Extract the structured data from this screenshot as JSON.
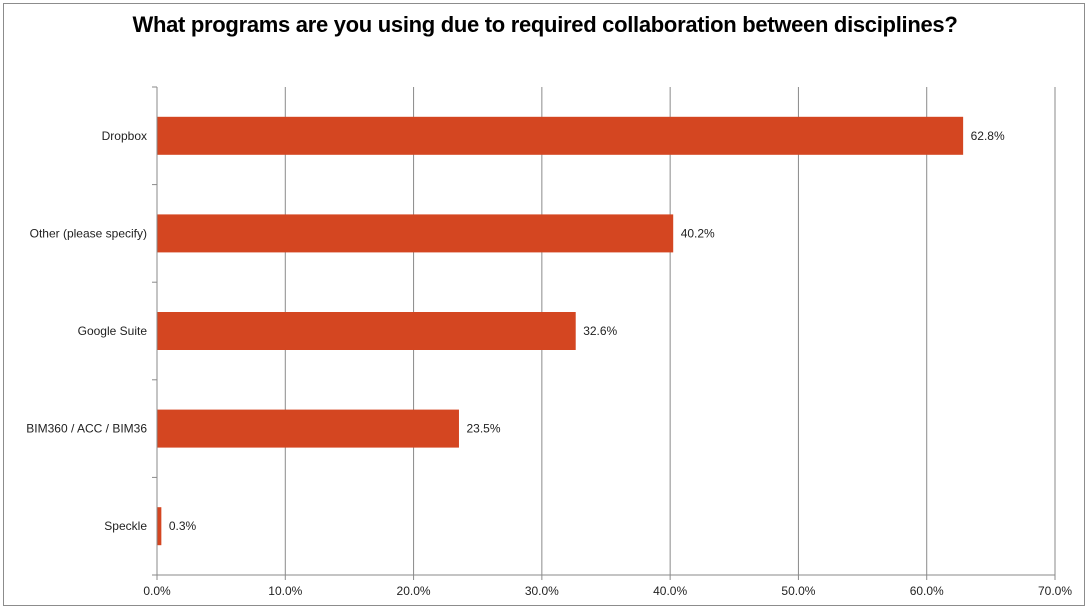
{
  "chart_data": {
    "type": "bar",
    "orientation": "horizontal",
    "title": "What programs are you using due to required collaboration between disciplines?",
    "categories": [
      "Dropbox",
      "Other (please specify)",
      "Google Suite",
      "BIM360 / ACC / BIM36",
      "Speckle"
    ],
    "values": [
      62.8,
      40.2,
      32.6,
      23.5,
      0.3
    ],
    "value_labels": [
      "62.8%",
      "40.2%",
      "32.6%",
      "23.5%",
      "0.3%"
    ],
    "xlim": [
      0,
      70
    ],
    "xticks": [
      "0.0%",
      "10.0%",
      "20.0%",
      "30.0%",
      "40.0%",
      "50.0%",
      "60.0%",
      "70.0%"
    ],
    "grid": true,
    "legend": "none",
    "bar_color": "#D44621"
  }
}
